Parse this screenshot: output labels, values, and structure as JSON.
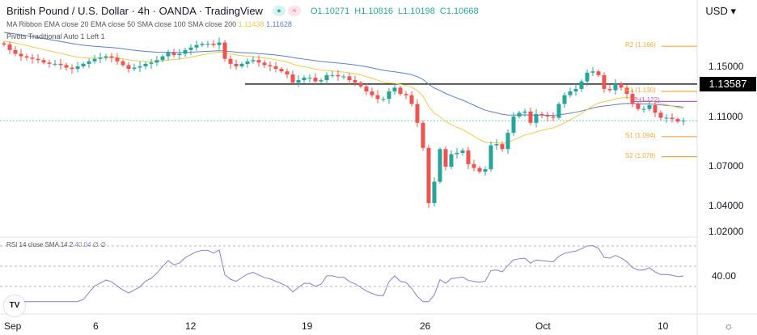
{
  "header": {
    "title": "British Pound / U.S. Dollar · 4h · OANDA · TradingView",
    "open": "O1.10271",
    "high": "H1.10816",
    "low": "L1.10198",
    "close": "C1.10668",
    "currency": "USD"
  },
  "legends": {
    "ma_ribbon": "MA Ribbon EMA close 20 EMA close 50 SMA close 100 SMA close 200",
    "ma_val1": "1.11438",
    "ma_val2": "1.11628",
    "pivots": "Pivots Traditional Auto 1 Left 1",
    "rsi": "RSI 14 close SMA 14 2",
    "rsi_val": "40.04",
    "rsi_extra": "∅ ∅"
  },
  "colors": {
    "up": "#26a69a",
    "down": "#ef5350",
    "ema20": "#f2c94c",
    "ema50": "#5b7fc7",
    "pivot": "#f4a83d",
    "pivot_p": "#b05fd0",
    "rsi": "#8e7cc3"
  },
  "price_axis": [
    "1.15000",
    "1.11000",
    "1.07000",
    "1.04000",
    "1.02000"
  ],
  "last_price": "1.13587",
  "rsi_axis": "40.00",
  "time_axis": [
    "Sep",
    "6",
    "12",
    "19",
    "26",
    "Oct",
    "10"
  ],
  "pivots": [
    {
      "label": "R2 (1.166)",
      "value": 1.166
    },
    {
      "label": "R1 (1.130)",
      "value": 1.13
    },
    {
      "label": "P (1.122)",
      "value": 1.122
    },
    {
      "label": "S1 (1.094)",
      "value": 1.094
    },
    {
      "label": "S2 (1.078)",
      "value": 1.078
    }
  ],
  "chart_data": {
    "type": "candlestick",
    "symbol": "GBPUSD",
    "interval": "4h",
    "horizontal_line": 1.13587,
    "current_close": 1.10668,
    "ylim": [
      1.02,
      1.18
    ],
    "rsi_levels": [
      30,
      50,
      70
    ],
    "closes": [
      1.1674,
      1.163,
      1.16,
      1.158,
      1.157,
      1.156,
      1.155,
      1.153,
      1.152,
      1.152,
      1.151,
      1.149,
      1.148,
      1.15,
      1.152,
      1.154,
      1.156,
      1.157,
      1.158,
      1.157,
      1.154,
      1.151,
      1.148,
      1.149,
      1.15,
      1.152,
      1.153,
      1.155,
      1.158,
      1.161,
      1.159,
      1.16,
      1.163,
      1.165,
      1.167,
      1.168,
      1.168,
      1.167,
      1.169,
      1.156,
      1.152,
      1.15,
      1.152,
      1.154,
      1.155,
      1.153,
      1.151,
      1.15,
      1.148,
      1.146,
      1.1435,
      1.137,
      1.139,
      1.141,
      1.141,
      1.138,
      1.139,
      1.143,
      1.143,
      1.142,
      1.142,
      1.139,
      1.137,
      1.134,
      1.13,
      1.127,
      1.124,
      1.124,
      1.13,
      1.133,
      1.128,
      1.127,
      1.12,
      1.105,
      1.085,
      1.041,
      1.058,
      1.084,
      1.07,
      1.08,
      1.081,
      1.083,
      1.072,
      1.069,
      1.066,
      1.068,
      1.087,
      1.088,
      1.084,
      1.097,
      1.11,
      1.113,
      1.114,
      1.105,
      1.112,
      1.111,
      1.11,
      1.109,
      1.12,
      1.127,
      1.13,
      1.132,
      1.138,
      1.145,
      1.146,
      1.143,
      1.132,
      1.131,
      1.136,
      1.133,
      1.128,
      1.12,
      1.116,
      1.116,
      1.119,
      1.113,
      1.109,
      1.109,
      1.108,
      1.106,
      1.1067
    ]
  }
}
